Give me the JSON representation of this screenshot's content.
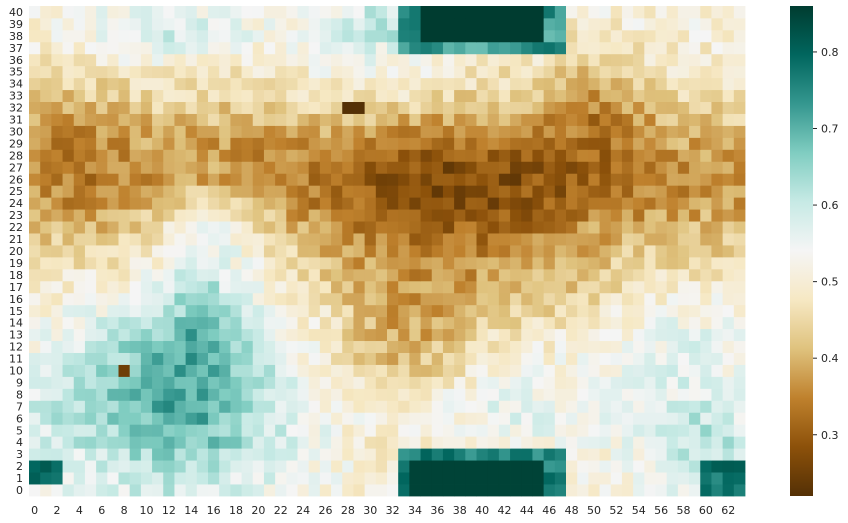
{
  "chart_data": {
    "type": "heatmap",
    "title": "",
    "xlabel": "",
    "ylabel": "",
    "n_cols": 64,
    "n_rows": 41,
    "x_tick_labels": [
      "0",
      "2",
      "4",
      "6",
      "8",
      "10",
      "12",
      "14",
      "16",
      "18",
      "20",
      "22",
      "24",
      "26",
      "28",
      "30",
      "32",
      "34",
      "36",
      "38",
      "40",
      "42",
      "44",
      "46",
      "48",
      "50",
      "52",
      "54",
      "56",
      "58",
      "60",
      "62"
    ],
    "y_tick_labels": [
      "0",
      "1",
      "2",
      "3",
      "4",
      "5",
      "6",
      "7",
      "8",
      "9",
      "10",
      "11",
      "12",
      "13",
      "14",
      "15",
      "16",
      "17",
      "18",
      "19",
      "20",
      "21",
      "22",
      "23",
      "24",
      "25",
      "26",
      "27",
      "28",
      "29",
      "30",
      "31",
      "32",
      "33",
      "34",
      "35",
      "36",
      "37",
      "38",
      "39",
      "40"
    ],
    "y_origin": "bottom",
    "value_range": [
      0.22,
      0.86
    ],
    "colormap": "BrBG",
    "colormap_stops": [
      "#543005",
      "#8c510a",
      "#bf812d",
      "#dfc27d",
      "#f6e8c3",
      "#f5f5f5",
      "#c7eae5",
      "#80cdc1",
      "#35978f",
      "#01665e",
      "#003c30"
    ],
    "colorbar_ticks": [
      "0.3",
      "0.4",
      "0.5",
      "0.6",
      "0.7",
      "0.8"
    ],
    "colorbar_tick_values": [
      0.3,
      0.4,
      0.5,
      0.6,
      0.7,
      0.8
    ],
    "features": {
      "dark_teal_bottom_block": {
        "cols": [
          34,
          45
        ],
        "rows": [
          0,
          2
        ],
        "value": 0.85
      },
      "dark_teal_top_block": {
        "cols": [
          35,
          45
        ],
        "rows": [
          38,
          40
        ],
        "value": 0.86
      },
      "teal_left_region": {
        "cols": [
          0,
          20
        ],
        "rows": [
          0,
          15
        ],
        "value": 0.7
      },
      "brown_band": {
        "rows": [
          17,
          34
        ],
        "value": 0.3
      },
      "darkest_cell": {
        "col": 28,
        "row": 32,
        "value": 0.22
      },
      "dark_cell": {
        "col": 8,
        "row": 10,
        "value": 0.25
      }
    },
    "seed": 7
  }
}
